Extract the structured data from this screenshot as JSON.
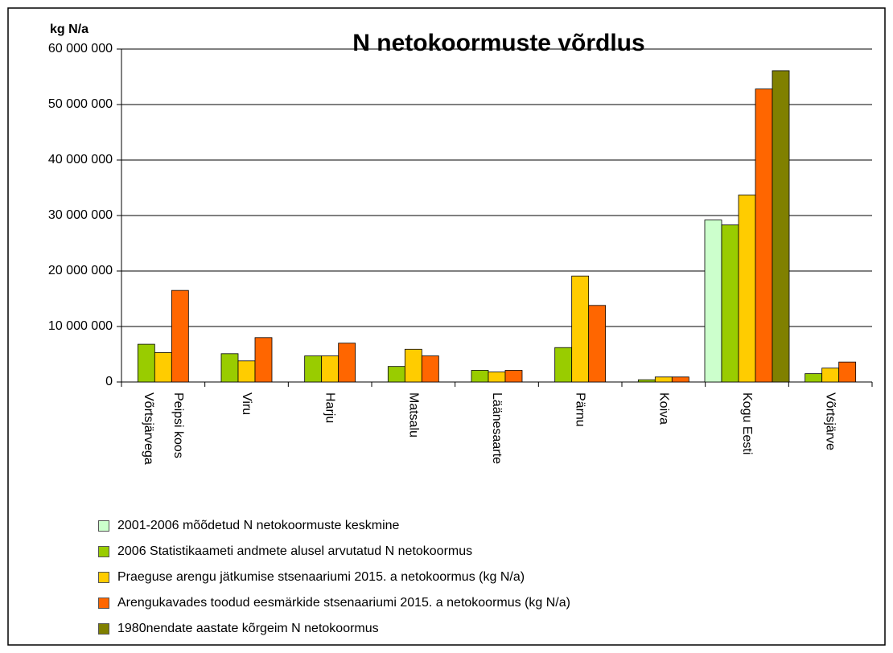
{
  "chart_data": {
    "type": "bar",
    "title": "N netokoormuste võrdlus",
    "y_label": "kg N/a",
    "categories": [
      "Peipsi koos Võrtsjärvega",
      "Viru",
      "Harju",
      "Matsalu",
      "Läänesaarte",
      "Pärnu",
      "Koiva",
      "Kogu Eesti",
      "Võrtsjärve"
    ],
    "series": [
      {
        "name": "2001-2006 mõõdetud N netokoormuste keskmine",
        "color": "#ccffcc",
        "values": [
          null,
          null,
          null,
          null,
          null,
          null,
          null,
          29200000,
          null
        ]
      },
      {
        "name": "2006 Statistikaameti andmete alusel arvutatud N netokoormus",
        "color": "#99cc00",
        "values": [
          6800000,
          5100000,
          4700000,
          2800000,
          2100000,
          6200000,
          400000,
          28300000,
          1500000
        ]
      },
      {
        "name": "Praeguse arengu jätkumise stsenaariumi 2015. a netokoormus (kg N/a)",
        "color": "#ffcc00",
        "values": [
          5300000,
          3800000,
          4700000,
          5900000,
          1800000,
          19100000,
          900000,
          33700000,
          2500000
        ]
      },
      {
        "name": "Arengukavades toodud eesmärkide stsenaariumi 2015. a netokoormus (kg N/a)",
        "color": "#ff6600",
        "values": [
          16500000,
          8000000,
          7000000,
          4700000,
          2100000,
          13800000,
          900000,
          52800000,
          3600000
        ]
      },
      {
        "name": "1980nendate aastate kõrgeim N netokoormus",
        "color": "#808000",
        "values": [
          null,
          null,
          null,
          null,
          null,
          null,
          null,
          56100000,
          null
        ]
      }
    ],
    "ylim": [
      0,
      60000000
    ],
    "yticks": [
      {
        "value": 0,
        "label": "0"
      },
      {
        "value": 10000000,
        "label": "10 000 000"
      },
      {
        "value": 20000000,
        "label": "20 000 000"
      },
      {
        "value": 30000000,
        "label": "30 000 000"
      },
      {
        "value": 40000000,
        "label": "40 000 000"
      },
      {
        "value": 50000000,
        "label": "50 000 000"
      },
      {
        "value": 60000000,
        "label": "60 000 000"
      }
    ],
    "grid": true,
    "legend": "bottom"
  }
}
